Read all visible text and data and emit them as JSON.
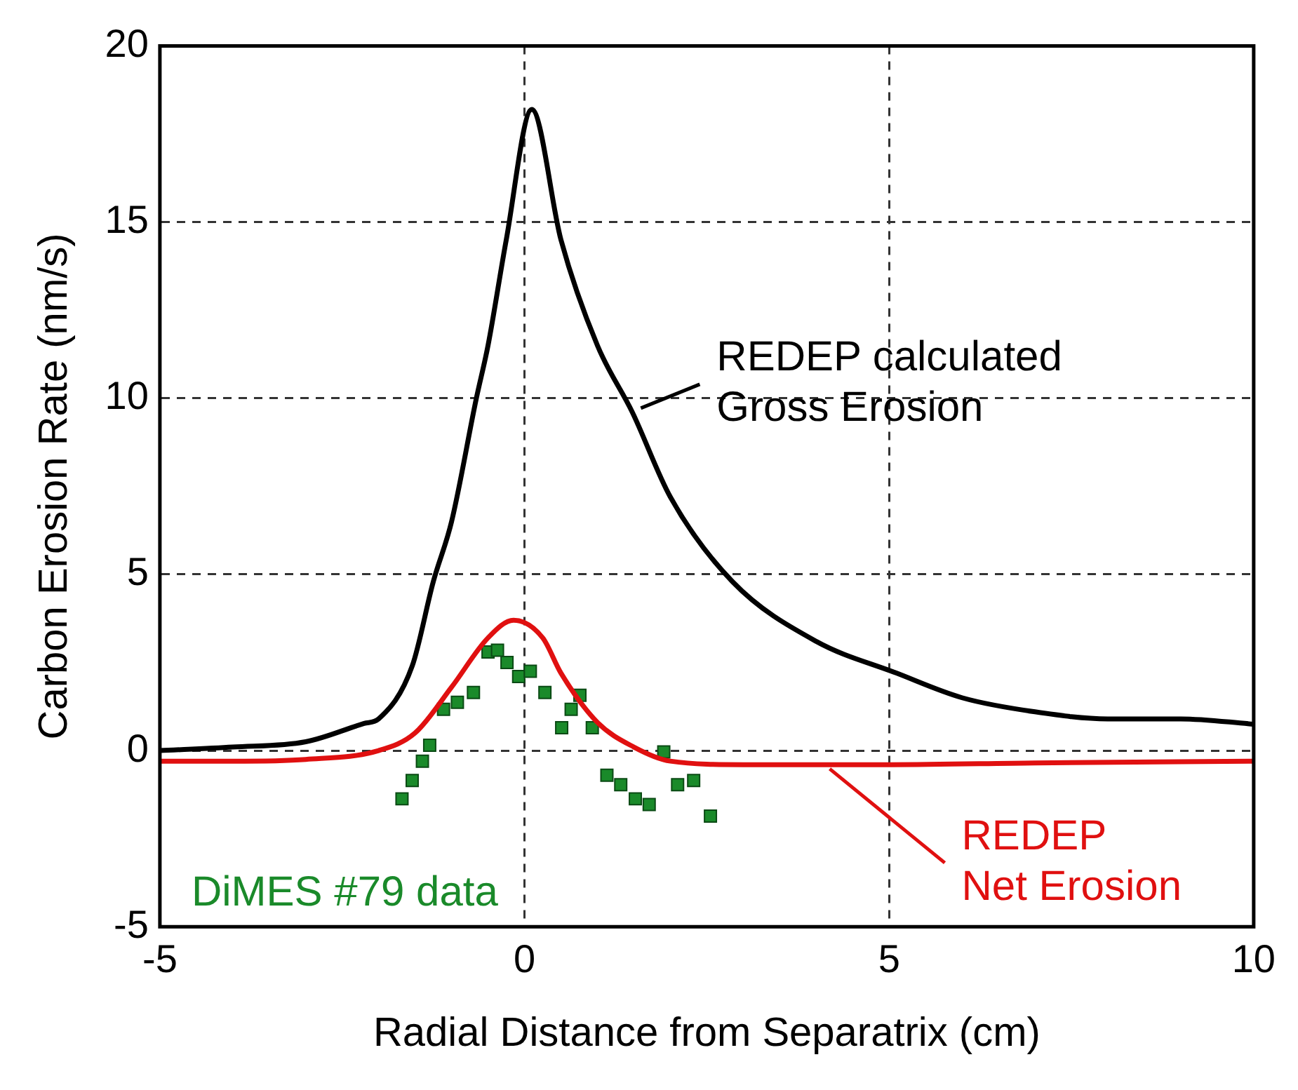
{
  "chart_data": {
    "type": "line",
    "xlabel": "Radial Distance from Separatrix (cm)",
    "ylabel": "Carbon Erosion Rate (nm/s)",
    "xlim": [
      -5,
      10
    ],
    "ylim": [
      -5,
      20
    ],
    "xticks": [
      -5,
      0,
      5,
      10
    ],
    "yticks": [
      -5,
      0,
      5,
      10,
      15,
      20
    ],
    "grid": true,
    "legend": "right",
    "series": [
      {
        "name": "REDEP calculated Gross Erosion",
        "type": "line",
        "color": "#000000",
        "marker": "none",
        "x": [
          -5,
          -4,
          -3,
          -2.2,
          -2,
          -1.54,
          -1.25,
          -1,
          -0.66,
          -0.5,
          -0.25,
          0.1,
          0.5,
          1,
          1.48,
          2,
          2.85,
          4,
          5.1,
          6,
          7,
          8,
          9,
          10
        ],
        "values": [
          0,
          0.1,
          0.25,
          0.77,
          0.9,
          2.4,
          4.8,
          6.5,
          10,
          11.5,
          14.5,
          18.2,
          14.5,
          11.5,
          9.6,
          7.2,
          4.8,
          3.1,
          2.2,
          1.5,
          1.1,
          0.9,
          0.9,
          0.75
        ]
      },
      {
        "name": "REDEP Net Erosion",
        "type": "line",
        "color": "#e01010",
        "marker": "none",
        "x": [
          -5,
          -4,
          -3,
          -2,
          -1.5,
          -1,
          -0.5,
          -0.15,
          0.25,
          0.5,
          1,
          1.5,
          2,
          3,
          4.07,
          5,
          7,
          10
        ],
        "values": [
          -0.3,
          -0.3,
          -0.25,
          0,
          0.5,
          1.8,
          3.2,
          3.7,
          3.2,
          2.2,
          0.8,
          0.1,
          -0.3,
          -0.4,
          -0.4,
          -0.4,
          -0.35,
          -0.3
        ]
      },
      {
        "name": "DiMES #79 data",
        "type": "scatter",
        "color": "#1a8a2a",
        "marker": "square",
        "x": [
          -1.68,
          -1.54,
          -1.4,
          -1.3,
          -1.11,
          -0.92,
          -0.7,
          -0.5,
          -0.37,
          -0.24,
          -0.08,
          0.08,
          0.28,
          0.51,
          0.64,
          0.76,
          0.93,
          1.13,
          1.32,
          1.52,
          1.71,
          1.91,
          2.1,
          2.32,
          2.55
        ],
        "values": [
          -1.37,
          -0.85,
          -0.3,
          0.15,
          1.17,
          1.37,
          1.65,
          2.8,
          2.85,
          2.5,
          2.1,
          2.25,
          1.65,
          0.65,
          1.17,
          1.57,
          0.65,
          -0.7,
          -0.97,
          -1.37,
          -1.53,
          -0.04,
          -0.97,
          -0.85,
          -1.86
        ]
      }
    ]
  }
}
